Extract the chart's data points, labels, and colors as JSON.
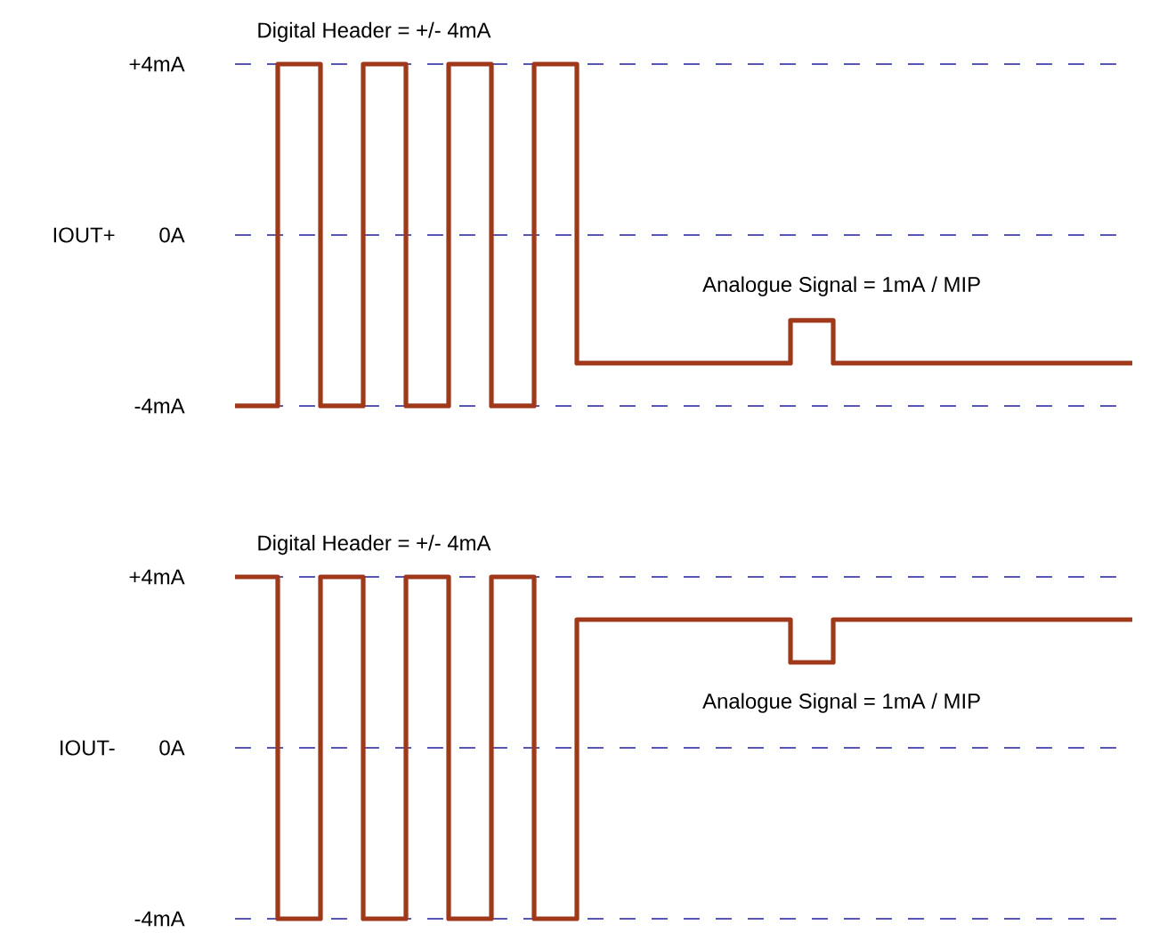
{
  "chart_data": [
    {
      "type": "step",
      "ylabel": "IOUT+",
      "annotations": [
        "Digital Header = +/- 4mA",
        "Analogue Signal = 1mA / MIP"
      ],
      "categories": [
        null,
        null,
        null,
        null,
        null,
        null,
        null,
        null,
        null,
        null,
        null,
        null,
        null,
        null,
        null,
        null,
        null,
        null,
        null,
        null,
        null,
        null
      ],
      "series": [
        {
          "color": "#a0391a",
          "values": [
            -4,
            4,
            -4,
            4,
            -4,
            4,
            -4,
            4,
            -3,
            -3,
            -3,
            -3,
            -3,
            -2,
            -3,
            -3,
            -3,
            -3,
            -3,
            -3,
            -3,
            -3
          ]
        }
      ],
      "ylim": [
        -4,
        4
      ],
      "yticks": [
        {
          "value": 4,
          "label": "+4mA"
        },
        {
          "value": 0,
          "label": "0A"
        },
        {
          "value": -4,
          "label": "-4mA"
        }
      ],
      "tick_labels": "y",
      "ref_lines": [
        {
          "axis": "y",
          "value": 4,
          "color": "#2020a0",
          "line_style": "dashed"
        },
        {
          "axis": "y",
          "value": 0,
          "color": "#2020a0",
          "line_style": "dashed"
        },
        {
          "axis": "y",
          "value": -4,
          "color": "#2020a0",
          "line_style": "dashed"
        }
      ]
    },
    {
      "type": "step",
      "ylabel": "IOUT-",
      "annotations": [
        "Digital Header = +/- 4mA",
        "Analogue Signal = 1mA / MIP"
      ],
      "categories": [
        null,
        null,
        null,
        null,
        null,
        null,
        null,
        null,
        null,
        null,
        null,
        null,
        null,
        null,
        null,
        null,
        null,
        null,
        null,
        null,
        null,
        null
      ],
      "series": [
        {
          "color": "#a0391a",
          "values": [
            4,
            -4,
            4,
            -4,
            4,
            -4,
            4,
            -4,
            3,
            3,
            3,
            3,
            3,
            2,
            3,
            3,
            3,
            3,
            3,
            3,
            3,
            3
          ]
        }
      ],
      "ylim": [
        -4,
        4
      ],
      "yticks": [
        {
          "value": 4,
          "label": "+4mA"
        },
        {
          "value": 0,
          "label": "0A"
        },
        {
          "value": -4,
          "label": "-4mA"
        }
      ],
      "tick_labels": "y",
      "ref_lines": [
        {
          "axis": "y",
          "value": 4,
          "color": "#2020a0",
          "line_style": "dashed"
        },
        {
          "axis": "y",
          "value": 0,
          "color": "#2020a0",
          "line_style": "dashed"
        },
        {
          "axis": "y",
          "value": -4,
          "color": "#2020a0",
          "line_style": "dashed"
        }
      ]
    }
  ]
}
